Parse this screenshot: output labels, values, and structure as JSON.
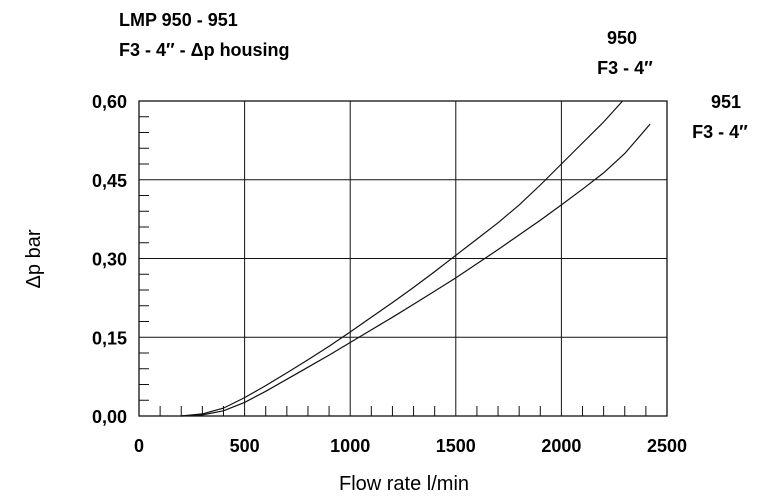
{
  "chart_data": {
    "type": "line",
    "title": "LMP 950 - 951",
    "subtitle": "F3 - 4″ - Δp housing",
    "xlabel": "Flow rate l/min",
    "ylabel": "Δp bar",
    "xlim": [
      0,
      2500
    ],
    "ylim": [
      0,
      0.6
    ],
    "x_ticks": [
      "0",
      "500",
      "1000",
      "1500",
      "2000",
      "2500"
    ],
    "y_ticks": [
      "0,00",
      "0,15",
      "0,30",
      "0,45",
      "0,60"
    ],
    "grid": true,
    "series": [
      {
        "name": "950",
        "name_line2": "F3 - 4″",
        "points": [
          [
            200,
            0
          ],
          [
            300,
            0.004
          ],
          [
            400,
            0.015
          ],
          [
            500,
            0.035
          ],
          [
            600,
            0.058
          ],
          [
            700,
            0.082
          ],
          [
            800,
            0.107
          ],
          [
            900,
            0.133
          ],
          [
            1000,
            0.16
          ],
          [
            1100,
            0.188
          ],
          [
            1200,
            0.216
          ],
          [
            1300,
            0.245
          ],
          [
            1400,
            0.275
          ],
          [
            1500,
            0.306
          ],
          [
            1600,
            0.337
          ],
          [
            1700,
            0.368
          ],
          [
            1800,
            0.402
          ],
          [
            1900,
            0.44
          ],
          [
            2000,
            0.48
          ],
          [
            2100,
            0.52
          ],
          [
            2200,
            0.56
          ],
          [
            2290,
            0.6
          ]
        ]
      },
      {
        "name": "951",
        "name_line2": "F3 - 4″",
        "points": [
          [
            200,
            0
          ],
          [
            300,
            0.002
          ],
          [
            400,
            0.01
          ],
          [
            500,
            0.026
          ],
          [
            600,
            0.047
          ],
          [
            700,
            0.07
          ],
          [
            800,
            0.093
          ],
          [
            900,
            0.116
          ],
          [
            1000,
            0.14
          ],
          [
            1100,
            0.164
          ],
          [
            1200,
            0.188
          ],
          [
            1300,
            0.213
          ],
          [
            1400,
            0.238
          ],
          [
            1500,
            0.263
          ],
          [
            1600,
            0.29
          ],
          [
            1700,
            0.317
          ],
          [
            1800,
            0.345
          ],
          [
            1900,
            0.373
          ],
          [
            2000,
            0.402
          ],
          [
            2100,
            0.432
          ],
          [
            2200,
            0.463
          ],
          [
            2300,
            0.5
          ],
          [
            2420,
            0.556
          ]
        ]
      }
    ]
  }
}
